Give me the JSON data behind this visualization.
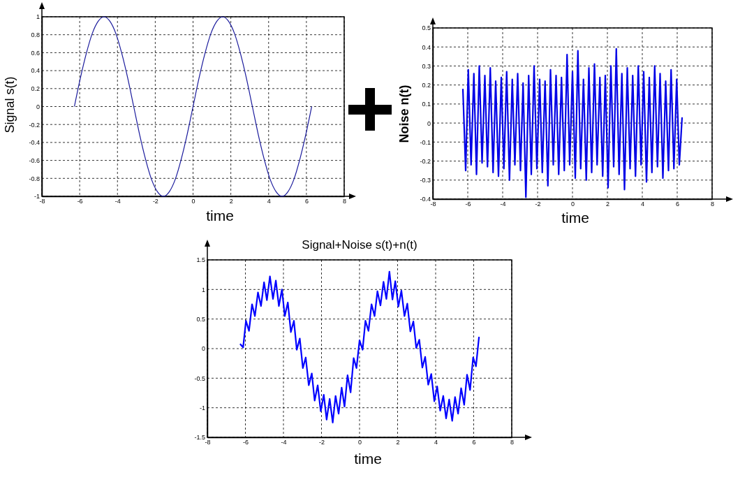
{
  "chart_data": [
    {
      "type": "line",
      "ylabel": "Signal s(t)",
      "xlabel": "time",
      "xlim": [
        -8,
        8
      ],
      "xticks": [
        -8,
        -6,
        -4,
        -2,
        0,
        2,
        4,
        6,
        8
      ],
      "ylim": [
        -1,
        1
      ],
      "yticks": [
        -1,
        -0.8,
        -0.6,
        -0.4,
        -0.2,
        0,
        0.2,
        0.4,
        0.6,
        0.8,
        1
      ],
      "grid": true,
      "series": [
        {
          "color": "#1a1a9c",
          "x": [
            -6.28,
            -5.97,
            -5.65,
            -5.34,
            -5.02,
            -4.71,
            -4.4,
            -4.08,
            -3.77,
            -3.45,
            -3.14,
            -2.83,
            -2.51,
            -2.2,
            -1.88,
            -1.57,
            -1.26,
            -0.94,
            -0.63,
            -0.31,
            0,
            0.31,
            0.63,
            0.94,
            1.26,
            1.57,
            1.88,
            2.2,
            2.51,
            2.83,
            3.14,
            3.45,
            3.77,
            4.08,
            4.4,
            4.71,
            5.02,
            5.34,
            5.65,
            5.97,
            6.28
          ],
          "values": [
            0,
            0.31,
            0.59,
            0.81,
            0.95,
            1,
            0.95,
            0.81,
            0.59,
            0.31,
            0,
            -0.31,
            -0.59,
            -0.81,
            -0.95,
            -1,
            -0.95,
            -0.81,
            -0.59,
            -0.31,
            0,
            0.31,
            0.59,
            0.81,
            0.95,
            1,
            0.95,
            0.81,
            0.59,
            0.31,
            0,
            -0.31,
            -0.59,
            -0.81,
            -0.95,
            -1,
            -0.95,
            -0.81,
            -0.59,
            -0.31,
            0
          ]
        }
      ]
    },
    {
      "type": "line",
      "ylabel": "Noise n(t)",
      "xlabel": "time",
      "xlim": [
        -8,
        8
      ],
      "xticks": [
        -8,
        -6,
        -4,
        -2,
        0,
        2,
        4,
        6,
        8
      ],
      "ylim": [
        -0.4,
        0.5
      ],
      "yticks": [
        -0.4,
        -0.3,
        -0.2,
        -0.1,
        0,
        0.1,
        0.2,
        0.3,
        0.4,
        0.5
      ],
      "grid": true,
      "series": [
        {
          "color": "#0000e6",
          "x": [
            -6.28,
            -6.12,
            -5.97,
            -5.81,
            -5.65,
            -5.5,
            -5.34,
            -5.18,
            -5.02,
            -4.87,
            -4.71,
            -4.55,
            -4.4,
            -4.24,
            -4.08,
            -3.93,
            -3.77,
            -3.61,
            -3.45,
            -3.3,
            -3.14,
            -2.98,
            -2.83,
            -2.67,
            -2.51,
            -2.36,
            -2.2,
            -2.04,
            -1.88,
            -1.73,
            -1.57,
            -1.41,
            -1.26,
            -1.1,
            -0.94,
            -0.79,
            -0.63,
            -0.47,
            -0.31,
            -0.16,
            0,
            0.16,
            0.31,
            0.47,
            0.63,
            0.79,
            0.94,
            1.1,
            1.26,
            1.41,
            1.57,
            1.73,
            1.88,
            2.04,
            2.2,
            2.36,
            2.51,
            2.67,
            2.83,
            2.98,
            3.14,
            3.3,
            3.45,
            3.61,
            3.77,
            3.93,
            4.08,
            4.24,
            4.4,
            4.55,
            4.71,
            4.87,
            5.02,
            5.18,
            5.34,
            5.5,
            5.65,
            5.81,
            5.97,
            6.12,
            6.28
          ],
          "values": [
            0.18,
            -0.25,
            0.28,
            -0.22,
            0.26,
            -0.27,
            0.3,
            -0.21,
            0.25,
            -0.23,
            0.29,
            -0.26,
            0.22,
            -0.28,
            0.24,
            -0.24,
            0.27,
            -0.3,
            0.23,
            -0.22,
            0.26,
            -0.25,
            0.21,
            -0.39,
            0.25,
            -0.27,
            0.3,
            -0.24,
            0.23,
            -0.26,
            0.22,
            -0.33,
            0.28,
            -0.22,
            0.25,
            -0.27,
            0.24,
            -0.25,
            0.36,
            -0.22,
            0.27,
            -0.29,
            0.38,
            -0.24,
            0.23,
            -0.3,
            0.29,
            -0.26,
            0.31,
            -0.22,
            0.24,
            -0.28,
            0.25,
            -0.34,
            0.3,
            -0.23,
            0.39,
            -0.27,
            0.26,
            -0.35,
            0.29,
            -0.24,
            0.25,
            -0.28,
            0.3,
            -0.22,
            0.27,
            -0.31,
            0.24,
            -0.26,
            0.3,
            -0.23,
            0.26,
            -0.29,
            0.22,
            -0.25,
            0.28,
            -0.24,
            0.23,
            -0.22,
            0.03
          ]
        }
      ]
    },
    {
      "type": "line",
      "title": "Signal+Noise s(t)+n(t)",
      "xlabel": "time",
      "xlim": [
        -8,
        8
      ],
      "xticks": [
        -8,
        -6,
        -4,
        -2,
        0,
        2,
        4,
        6,
        8
      ],
      "ylim": [
        -1.5,
        1.5
      ],
      "yticks": [
        -1.5,
        -1,
        -0.5,
        0,
        0.5,
        1,
        1.5
      ],
      "grid": true,
      "series": [
        {
          "color": "#0000ff",
          "x": [
            -6.28,
            -6.12,
            -5.97,
            -5.81,
            -5.65,
            -5.5,
            -5.34,
            -5.18,
            -5.02,
            -4.87,
            -4.71,
            -4.55,
            -4.4,
            -4.24,
            -4.08,
            -3.93,
            -3.77,
            -3.61,
            -3.45,
            -3.3,
            -3.14,
            -2.98,
            -2.83,
            -2.67,
            -2.51,
            -2.36,
            -2.2,
            -2.04,
            -1.88,
            -1.73,
            -1.57,
            -1.41,
            -1.26,
            -1.1,
            -0.94,
            -0.79,
            -0.63,
            -0.47,
            -0.31,
            -0.16,
            0,
            0.16,
            0.31,
            0.47,
            0.63,
            0.79,
            0.94,
            1.1,
            1.26,
            1.41,
            1.57,
            1.73,
            1.88,
            2.04,
            2.2,
            2.36,
            2.51,
            2.67,
            2.83,
            2.98,
            3.14,
            3.3,
            3.45,
            3.61,
            3.77,
            3.93,
            4.08,
            4.24,
            4.4,
            4.55,
            4.71,
            4.87,
            5.02,
            5.18,
            5.34,
            5.5,
            5.65,
            5.81,
            5.97,
            6.12,
            6.28
          ],
          "values": [
            0.08,
            0.02,
            0.47,
            0.3,
            0.75,
            0.55,
            0.95,
            0.72,
            1.12,
            0.82,
            1.22,
            0.84,
            1.15,
            0.72,
            1.0,
            0.55,
            0.78,
            0.28,
            0.47,
            -0.02,
            0.17,
            -0.33,
            -0.15,
            -0.62,
            -0.42,
            -0.88,
            -0.62,
            -1.06,
            -0.78,
            -1.2,
            -0.85,
            -1.25,
            -0.8,
            -1.1,
            -0.66,
            -0.98,
            -0.45,
            -0.74,
            -0.16,
            -0.33,
            0.14,
            -0.02,
            0.47,
            0.3,
            0.75,
            0.55,
            0.97,
            0.73,
            1.13,
            0.84,
            1.3,
            0.83,
            1.14,
            0.71,
            0.98,
            0.55,
            0.76,
            0.29,
            0.46,
            0.01,
            0.15,
            -0.32,
            -0.14,
            -0.61,
            -0.43,
            -0.89,
            -0.64,
            -1.05,
            -0.8,
            -1.18,
            -0.86,
            -1.22,
            -0.82,
            -1.1,
            -0.67,
            -0.95,
            -0.44,
            -0.7,
            -0.15,
            -0.3,
            0.2
          ]
        }
      ]
    }
  ]
}
